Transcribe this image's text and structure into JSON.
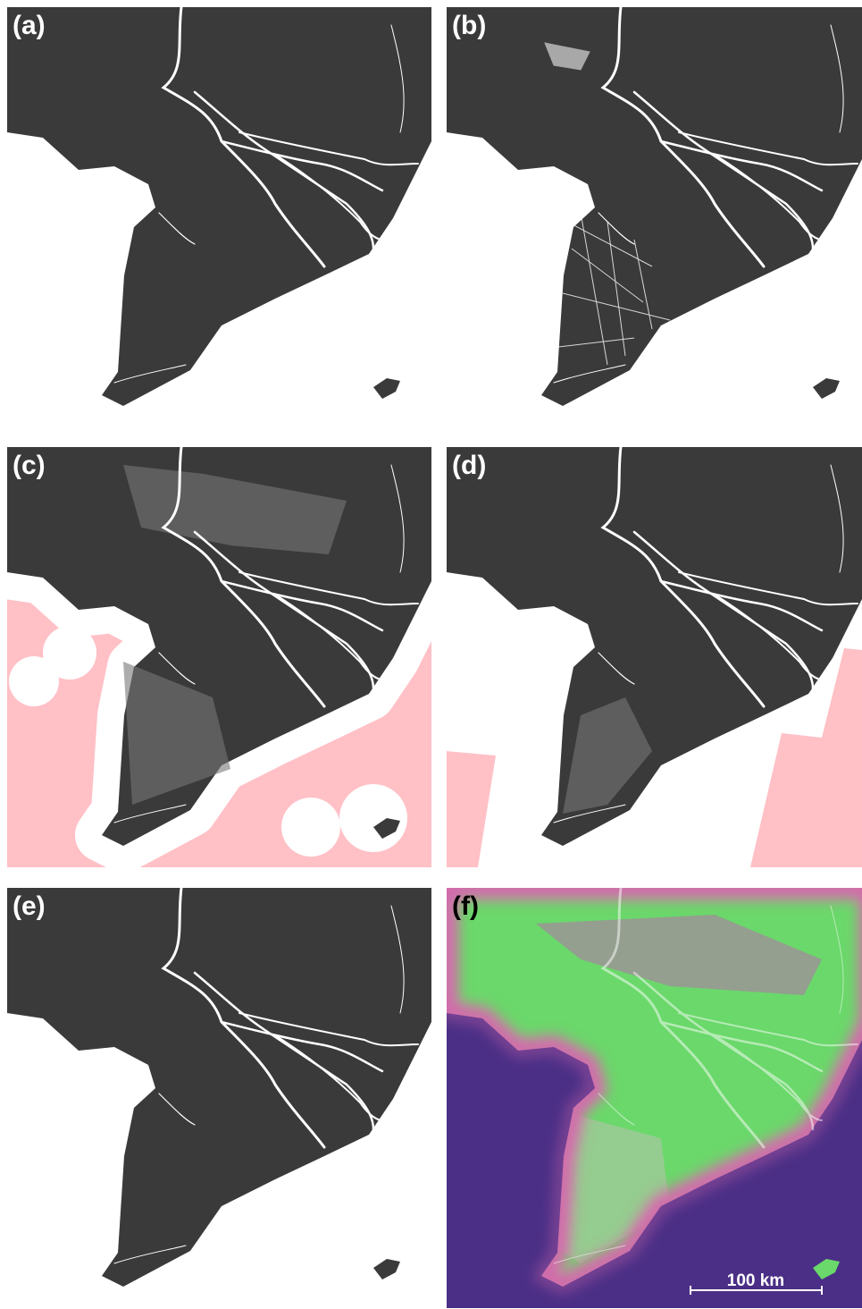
{
  "panels": [
    {
      "label": "(a)"
    },
    {
      "label": "(b)"
    },
    {
      "label": "(c)"
    },
    {
      "label": "(d)"
    },
    {
      "label": "(e)"
    },
    {
      "label": "(f)"
    }
  ],
  "scale_bar": {
    "label": "100 km"
  }
}
